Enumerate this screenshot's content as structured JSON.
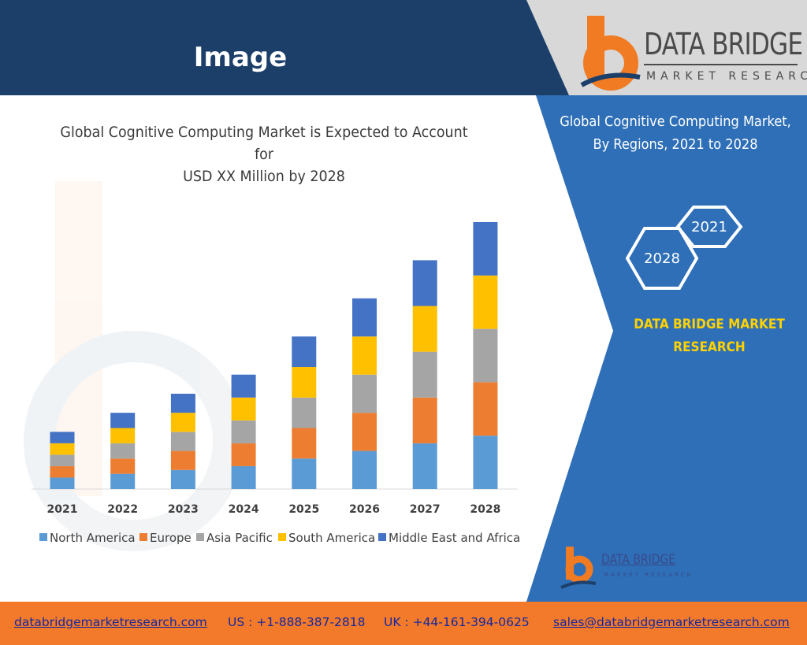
{
  "header": {
    "title": "Image"
  },
  "brand": {
    "name": "DATA BRIDGE",
    "tagline": "MARKET RESEARCH"
  },
  "colors": {
    "header_bg": "#1c3f6a",
    "panel_blue": "#2e6fb8",
    "footer_orange": "#f37a2a",
    "brand_orange": "#f07b23",
    "accent_yellow": "#ffd200"
  },
  "side_panel": {
    "title_line1": "Global Cognitive Computing Market,",
    "title_line2": "By Regions, 2021 to 2028",
    "hex_top": "2021",
    "hex_bottom": "2028",
    "brand_line1": "DATA BRIDGE MARKET",
    "brand_line2": "RESEARCH"
  },
  "footer": {
    "website": "databridgemarketresearch.com",
    "us_phone": "US : +1-888-387-2818",
    "uk_phone": "UK : +44-161-394-0625",
    "email": "sales@databridgemarketresearch.com"
  },
  "chart_data": {
    "type": "bar",
    "stacked": true,
    "title_line1": "Global Cognitive Computing Market is Expected to Account for",
    "title_line2": "USD XX Million by 2028",
    "categories": [
      "2021",
      "2022",
      "2023",
      "2024",
      "2025",
      "2026",
      "2027",
      "2028"
    ],
    "series": [
      {
        "name": "North America",
        "color": "#5b9bd5",
        "values": [
          15,
          20,
          25,
          30,
          40,
          50,
          60,
          70
        ]
      },
      {
        "name": "Europe",
        "color": "#ed7d31",
        "values": [
          15,
          20,
          25,
          30,
          40,
          50,
          60,
          70
        ]
      },
      {
        "name": "Asia Pacific",
        "color": "#a5a5a5",
        "values": [
          15,
          20,
          25,
          30,
          40,
          50,
          60,
          70
        ]
      },
      {
        "name": "South America",
        "color": "#ffc000",
        "values": [
          15,
          20,
          25,
          30,
          40,
          50,
          60,
          70
        ]
      },
      {
        "name": "Middle East and Africa",
        "color": "#4472c4",
        "values": [
          15,
          20,
          25,
          30,
          40,
          50,
          60,
          70
        ]
      }
    ],
    "legend_position": "bottom",
    "grid": false,
    "ylim": [
      0,
      350
    ]
  }
}
